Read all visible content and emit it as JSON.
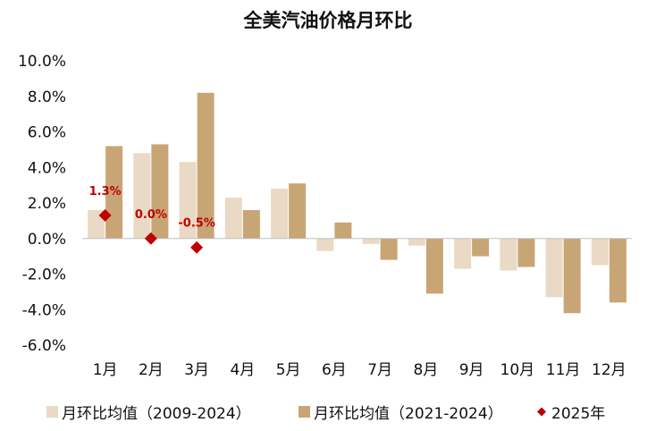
{
  "chart_data": {
    "type": "bar",
    "title": "全美汽油价格月环比",
    "categories": [
      "1月",
      "2月",
      "3月",
      "4月",
      "5月",
      "6月",
      "7月",
      "8月",
      "9月",
      "10月",
      "11月",
      "12月"
    ],
    "series": [
      {
        "name": "月环比均值（2009-2024）",
        "type": "bar",
        "color": "#ead9c4",
        "values": [
          1.6,
          4.8,
          4.3,
          2.3,
          2.8,
          -0.7,
          -0.3,
          -0.4,
          -1.7,
          -1.8,
          -3.3,
          -1.5
        ]
      },
      {
        "name": "月环比均值（2021-2024）",
        "type": "bar",
        "color": "#c8a574",
        "values": [
          5.2,
          5.3,
          8.2,
          1.6,
          3.1,
          0.9,
          -1.2,
          -3.1,
          -1.0,
          -1.6,
          -4.2,
          -3.6
        ]
      },
      {
        "name": "2025年",
        "type": "scatter",
        "marker": "diamond",
        "color": "#c00000",
        "values": [
          1.3,
          0.0,
          -0.5
        ],
        "labels": [
          "1.3%",
          "0.0%",
          "-0.5%"
        ]
      }
    ],
    "ylim": [
      -6,
      10
    ],
    "yticks": [
      "10.0%",
      "8.0%",
      "6.0%",
      "4.0%",
      "2.0%",
      "0.0%",
      "-2.0%",
      "-4.0%",
      "-6.0%"
    ],
    "ytick_values": [
      10,
      8,
      6,
      4,
      2,
      0,
      -2,
      -4,
      -6
    ],
    "xlabel": "",
    "ylabel": "",
    "grid": false,
    "legend_position": "bottom"
  }
}
